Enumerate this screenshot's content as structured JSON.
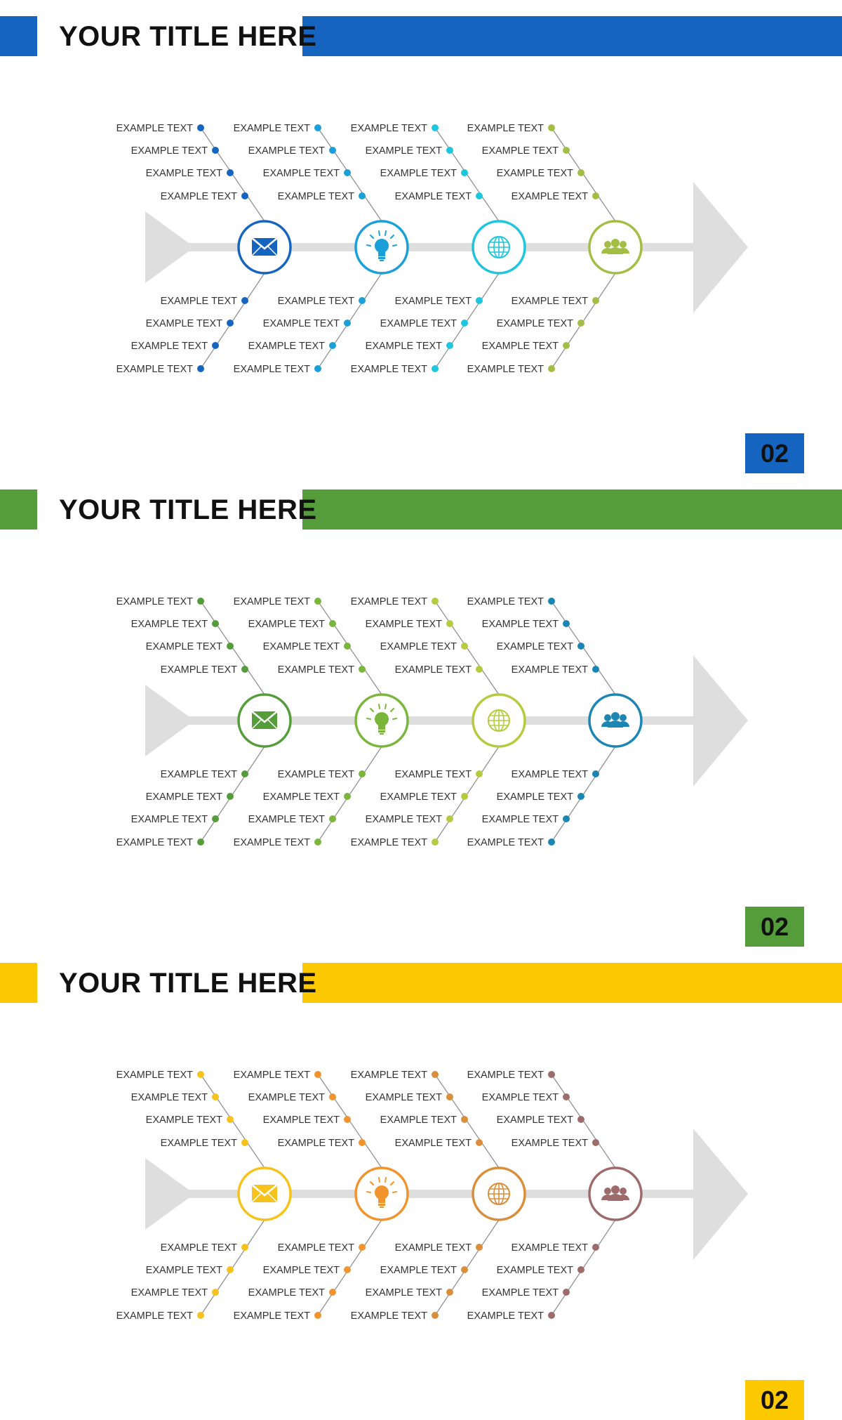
{
  "slides": [
    {
      "title": "YOUR TITLE HERE",
      "page_number": "02",
      "accent_color": "#1565c0",
      "node_colors": [
        "#1565c0",
        "#1a9fd9",
        "#1ec6dd",
        "#a3be45"
      ],
      "nodes": [
        {
          "icon": "envelope-icon",
          "top_labels": [
            "EXAMPLE TEXT",
            "EXAMPLE TEXT",
            "EXAMPLE TEXT",
            "EXAMPLE TEXT"
          ],
          "bottom_labels": [
            "EXAMPLE TEXT",
            "EXAMPLE TEXT",
            "EXAMPLE TEXT",
            "EXAMPLE TEXT"
          ]
        },
        {
          "icon": "lightbulb-icon",
          "top_labels": [
            "EXAMPLE TEXT",
            "EXAMPLE TEXT",
            "EXAMPLE TEXT",
            "EXAMPLE TEXT"
          ],
          "bottom_labels": [
            "EXAMPLE TEXT",
            "EXAMPLE TEXT",
            "EXAMPLE TEXT",
            "EXAMPLE TEXT"
          ]
        },
        {
          "icon": "globe-icon",
          "top_labels": [
            "EXAMPLE TEXT",
            "EXAMPLE TEXT",
            "EXAMPLE TEXT",
            "EXAMPLE TEXT"
          ],
          "bottom_labels": [
            "EXAMPLE TEXT",
            "EXAMPLE TEXT",
            "EXAMPLE TEXT",
            "EXAMPLE TEXT"
          ]
        },
        {
          "icon": "team-icon",
          "top_labels": [
            "EXAMPLE TEXT",
            "EXAMPLE TEXT",
            "EXAMPLE TEXT",
            "EXAMPLE TEXT"
          ],
          "bottom_labels": [
            "EXAMPLE TEXT",
            "EXAMPLE TEXT",
            "EXAMPLE TEXT",
            "EXAMPLE TEXT"
          ]
        }
      ]
    },
    {
      "title": "YOUR TITLE HERE",
      "page_number": "02",
      "accent_color": "#559c3a",
      "node_colors": [
        "#559c3a",
        "#7ab63c",
        "#b3cc3f",
        "#1b86b3"
      ],
      "nodes": [
        {
          "icon": "envelope-icon",
          "top_labels": [
            "EXAMPLE TEXT",
            "EXAMPLE TEXT",
            "EXAMPLE TEXT",
            "EXAMPLE TEXT"
          ],
          "bottom_labels": [
            "EXAMPLE TEXT",
            "EXAMPLE TEXT",
            "EXAMPLE TEXT",
            "EXAMPLE TEXT"
          ]
        },
        {
          "icon": "lightbulb-icon",
          "top_labels": [
            "EXAMPLE TEXT",
            "EXAMPLE TEXT",
            "EXAMPLE TEXT",
            "EXAMPLE TEXT"
          ],
          "bottom_labels": [
            "EXAMPLE TEXT",
            "EXAMPLE TEXT",
            "EXAMPLE TEXT",
            "EXAMPLE TEXT"
          ]
        },
        {
          "icon": "globe-icon",
          "top_labels": [
            "EXAMPLE TEXT",
            "EXAMPLE TEXT",
            "EXAMPLE TEXT",
            "EXAMPLE TEXT"
          ],
          "bottom_labels": [
            "EXAMPLE TEXT",
            "EXAMPLE TEXT",
            "EXAMPLE TEXT",
            "EXAMPLE TEXT"
          ]
        },
        {
          "icon": "team-icon",
          "top_labels": [
            "EXAMPLE TEXT",
            "EXAMPLE TEXT",
            "EXAMPLE TEXT",
            "EXAMPLE TEXT"
          ],
          "bottom_labels": [
            "EXAMPLE TEXT",
            "EXAMPLE TEXT",
            "EXAMPLE TEXT",
            "EXAMPLE TEXT"
          ]
        }
      ]
    },
    {
      "title": "YOUR TITLE HERE",
      "page_number": "02",
      "accent_color": "#fcc800",
      "node_colors": [
        "#f7c21c",
        "#f2942e",
        "#d98e3c",
        "#9e6b6b"
      ],
      "nodes": [
        {
          "icon": "envelope-icon",
          "top_labels": [
            "EXAMPLE TEXT",
            "EXAMPLE TEXT",
            "EXAMPLE TEXT",
            "EXAMPLE TEXT"
          ],
          "bottom_labels": [
            "EXAMPLE TEXT",
            "EXAMPLE TEXT",
            "EXAMPLE TEXT",
            "EXAMPLE TEXT"
          ]
        },
        {
          "icon": "lightbulb-icon",
          "top_labels": [
            "EXAMPLE TEXT",
            "EXAMPLE TEXT",
            "EXAMPLE TEXT",
            "EXAMPLE TEXT"
          ],
          "bottom_labels": [
            "EXAMPLE TEXT",
            "EXAMPLE TEXT",
            "EXAMPLE TEXT",
            "EXAMPLE TEXT"
          ]
        },
        {
          "icon": "globe-icon",
          "top_labels": [
            "EXAMPLE TEXT",
            "EXAMPLE TEXT",
            "EXAMPLE TEXT",
            "EXAMPLE TEXT"
          ],
          "bottom_labels": [
            "EXAMPLE TEXT",
            "EXAMPLE TEXT",
            "EXAMPLE TEXT",
            "EXAMPLE TEXT"
          ]
        },
        {
          "icon": "team-icon",
          "top_labels": [
            "EXAMPLE TEXT",
            "EXAMPLE TEXT",
            "EXAMPLE TEXT",
            "EXAMPLE TEXT"
          ],
          "bottom_labels": [
            "EXAMPLE TEXT",
            "EXAMPLE TEXT",
            "EXAMPLE TEXT",
            "EXAMPLE TEXT"
          ]
        }
      ]
    }
  ]
}
